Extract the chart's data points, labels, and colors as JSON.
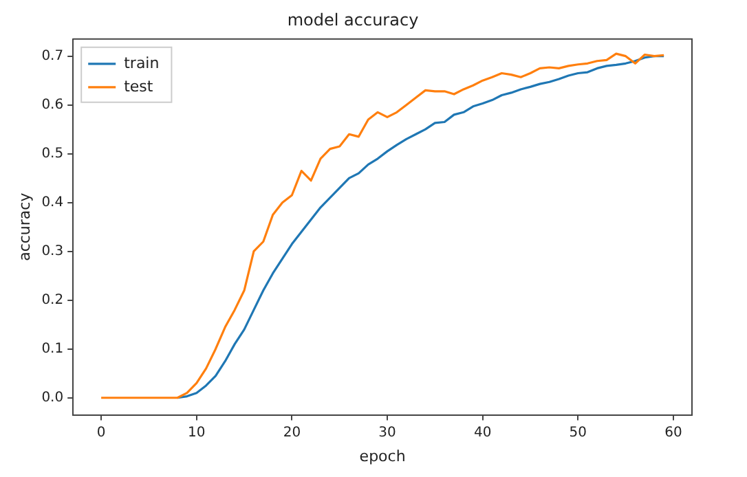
{
  "chart_data": {
    "type": "line",
    "title": "model accuracy",
    "xlabel": "epoch",
    "ylabel": "accuracy",
    "x": [
      0,
      1,
      2,
      3,
      4,
      5,
      6,
      7,
      8,
      9,
      10,
      11,
      12,
      13,
      14,
      15,
      16,
      17,
      18,
      19,
      20,
      21,
      22,
      23,
      24,
      25,
      26,
      27,
      28,
      29,
      30,
      31,
      32,
      33,
      34,
      35,
      36,
      37,
      38,
      39,
      40,
      41,
      42,
      43,
      44,
      45,
      46,
      47,
      48,
      49,
      50,
      51,
      52,
      53,
      54,
      55,
      56,
      57,
      58,
      59
    ],
    "series": [
      {
        "name": "train",
        "color": "#1f77b4",
        "values": [
          null,
          null,
          null,
          null,
          null,
          null,
          null,
          null,
          0,
          0.003,
          0.01,
          0.025,
          0.045,
          0.075,
          0.11,
          0.14,
          0.18,
          0.22,
          0.255,
          0.285,
          0.315,
          0.34,
          0.365,
          0.39,
          0.41,
          0.43,
          0.45,
          0.46,
          0.478,
          0.49,
          0.505,
          0.518,
          0.53,
          0.54,
          0.55,
          0.563,
          0.565,
          0.58,
          0.585,
          0.597,
          0.603,
          0.61,
          0.62,
          0.625,
          0.632,
          0.637,
          0.643,
          0.647,
          0.653,
          0.66,
          0.665,
          0.667,
          0.675,
          0.68,
          0.682,
          0.685,
          0.69,
          0.697,
          0.7,
          0.7
        ]
      },
      {
        "name": "test",
        "color": "#ff7f0e",
        "values": [
          0,
          0,
          0,
          0,
          0,
          0,
          0,
          0,
          0,
          0.01,
          0.03,
          0.06,
          0.1,
          0.145,
          0.18,
          0.22,
          0.3,
          0.32,
          0.375,
          0.4,
          0.415,
          0.465,
          0.445,
          0.49,
          0.51,
          0.515,
          0.54,
          0.535,
          0.57,
          0.585,
          0.575,
          0.585,
          0.6,
          0.615,
          0.63,
          0.628,
          0.628,
          0.622,
          0.632,
          0.64,
          0.65,
          0.657,
          0.665,
          0.662,
          0.657,
          0.665,
          0.675,
          0.677,
          0.675,
          0.68,
          0.683,
          0.685,
          0.69,
          0.692,
          0.705,
          0.7,
          0.685,
          0.703,
          0.7,
          0.702
        ]
      }
    ],
    "xlim": [
      -2.95,
      61.95
    ],
    "xticks": [
      0,
      10,
      20,
      30,
      40,
      50,
      60
    ],
    "ylim": [
      -0.035,
      0.735
    ],
    "yticks": [
      {
        "value": 0,
        "label": "0.0"
      },
      0.1,
      0.2,
      0.3,
      0.4,
      0.5,
      0.6,
      0.7
    ],
    "grid": false,
    "legend": "top left",
    "marker": "none",
    "line_style": "solid"
  }
}
